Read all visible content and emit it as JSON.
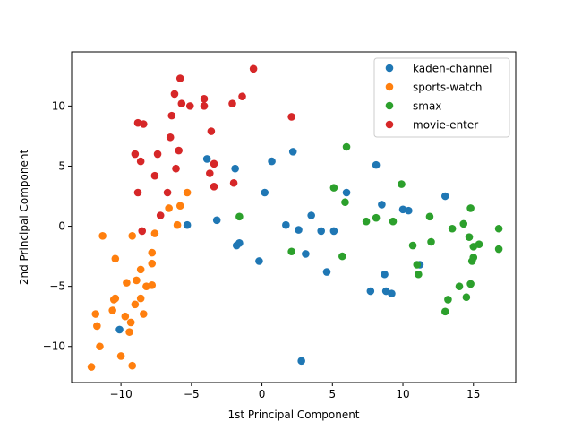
{
  "chart_data": {
    "type": "scatter",
    "xlabel": "1st Principal Component",
    "ylabel": "2nd Principal Component",
    "xlim": [
      -13.5,
      18.0
    ],
    "ylim": [
      -13.0,
      14.5
    ],
    "xticks": [
      -10,
      -5,
      0,
      5,
      10,
      15
    ],
    "yticks": [
      -10,
      -5,
      0,
      5,
      10
    ],
    "legend_position": "top-right",
    "grid": false,
    "series": [
      {
        "name": "kaden-channel",
        "color": "#1f77b4",
        "points": [
          [
            -10.1,
            -8.6
          ],
          [
            -5.3,
            0.1
          ],
          [
            -3.9,
            5.6
          ],
          [
            -3.2,
            0.5
          ],
          [
            -1.9,
            4.8
          ],
          [
            -1.8,
            -1.6
          ],
          [
            -1.6,
            -1.4
          ],
          [
            -0.2,
            -2.9
          ],
          [
            0.2,
            2.8
          ],
          [
            0.7,
            5.4
          ],
          [
            1.7,
            0.1
          ],
          [
            2.2,
            6.2
          ],
          [
            2.6,
            -0.3
          ],
          [
            2.8,
            -11.2
          ],
          [
            3.1,
            -2.3
          ],
          [
            3.5,
            0.9
          ],
          [
            4.2,
            -0.4
          ],
          [
            4.6,
            -3.8
          ],
          [
            5.1,
            -0.4
          ],
          [
            6.0,
            2.8
          ],
          [
            7.7,
            -5.4
          ],
          [
            8.1,
            5.1
          ],
          [
            8.5,
            1.8
          ],
          [
            8.7,
            -4.0
          ],
          [
            8.8,
            -5.4
          ],
          [
            9.2,
            -5.6
          ],
          [
            10.0,
            1.4
          ],
          [
            10.4,
            1.3
          ],
          [
            11.2,
            -3.2
          ],
          [
            13.0,
            2.5
          ]
        ]
      },
      {
        "name": "sports-watch",
        "color": "#ff7f0e",
        "points": [
          [
            -12.1,
            -11.7
          ],
          [
            -11.8,
            -7.3
          ],
          [
            -11.7,
            -8.3
          ],
          [
            -11.5,
            -10.0
          ],
          [
            -11.3,
            -0.8
          ],
          [
            -10.6,
            -7.0
          ],
          [
            -10.5,
            -6.1
          ],
          [
            -10.4,
            -6.0
          ],
          [
            -10.4,
            -2.7
          ],
          [
            -10.0,
            -10.8
          ],
          [
            -9.7,
            -7.5
          ],
          [
            -9.6,
            -4.7
          ],
          [
            -9.4,
            -8.8
          ],
          [
            -9.3,
            -8.0
          ],
          [
            -9.2,
            -11.6
          ],
          [
            -9.2,
            -0.8
          ],
          [
            -9.0,
            -6.5
          ],
          [
            -8.9,
            -4.5
          ],
          [
            -8.6,
            -6.0
          ],
          [
            -8.6,
            -3.6
          ],
          [
            -8.4,
            -7.3
          ],
          [
            -8.2,
            -5.0
          ],
          [
            -7.8,
            -2.2
          ],
          [
            -7.8,
            -3.1
          ],
          [
            -7.8,
            -4.9
          ],
          [
            -7.6,
            -0.6
          ],
          [
            -6.6,
            1.5
          ],
          [
            -6.0,
            0.1
          ],
          [
            -5.8,
            1.7
          ],
          [
            -5.3,
            2.8
          ]
        ]
      },
      {
        "name": "smax",
        "color": "#2ca02c",
        "points": [
          [
            -1.6,
            0.8
          ],
          [
            2.1,
            -2.1
          ],
          [
            5.1,
            3.2
          ],
          [
            5.7,
            -2.5
          ],
          [
            5.9,
            2.0
          ],
          [
            6.0,
            6.6
          ],
          [
            7.4,
            0.4
          ],
          [
            8.1,
            0.7
          ],
          [
            9.3,
            0.4
          ],
          [
            9.9,
            3.5
          ],
          [
            10.7,
            -1.6
          ],
          [
            11.0,
            -3.2
          ],
          [
            11.1,
            -4.0
          ],
          [
            11.9,
            0.8
          ],
          [
            12.0,
            -1.3
          ],
          [
            13.0,
            -7.1
          ],
          [
            13.2,
            -6.1
          ],
          [
            13.5,
            -0.2
          ],
          [
            14.0,
            -5.0
          ],
          [
            14.3,
            0.2
          ],
          [
            14.5,
            -5.9
          ],
          [
            14.7,
            -0.9
          ],
          [
            14.8,
            1.5
          ],
          [
            14.8,
            -4.8
          ],
          [
            14.9,
            -2.9
          ],
          [
            15.0,
            -2.6
          ],
          [
            15.0,
            -1.7
          ],
          [
            15.4,
            -1.5
          ],
          [
            16.8,
            -0.2
          ],
          [
            16.8,
            -1.9
          ]
        ]
      },
      {
        "name": "movie-enter",
        "color": "#d62728",
        "points": [
          [
            -9.0,
            6.0
          ],
          [
            -8.8,
            2.8
          ],
          [
            -8.8,
            8.6
          ],
          [
            -8.6,
            5.4
          ],
          [
            -8.5,
            -0.4
          ],
          [
            -8.4,
            8.5
          ],
          [
            -7.6,
            4.2
          ],
          [
            -7.4,
            6.0
          ],
          [
            -7.2,
            0.9
          ],
          [
            -6.7,
            2.8
          ],
          [
            -6.5,
            7.4
          ],
          [
            -6.4,
            9.2
          ],
          [
            -6.2,
            11.0
          ],
          [
            -6.1,
            4.8
          ],
          [
            -5.9,
            6.3
          ],
          [
            -5.8,
            12.3
          ],
          [
            -5.7,
            10.2
          ],
          [
            -5.1,
            10.0
          ],
          [
            -4.1,
            10.6
          ],
          [
            -4.1,
            10.0
          ],
          [
            -3.7,
            4.4
          ],
          [
            -3.6,
            7.9
          ],
          [
            -3.4,
            3.3
          ],
          [
            -3.4,
            5.2
          ],
          [
            -2.1,
            10.2
          ],
          [
            -2.0,
            3.6
          ],
          [
            -1.4,
            10.8
          ],
          [
            -0.6,
            13.1
          ],
          [
            2.1,
            9.1
          ]
        ]
      }
    ]
  }
}
